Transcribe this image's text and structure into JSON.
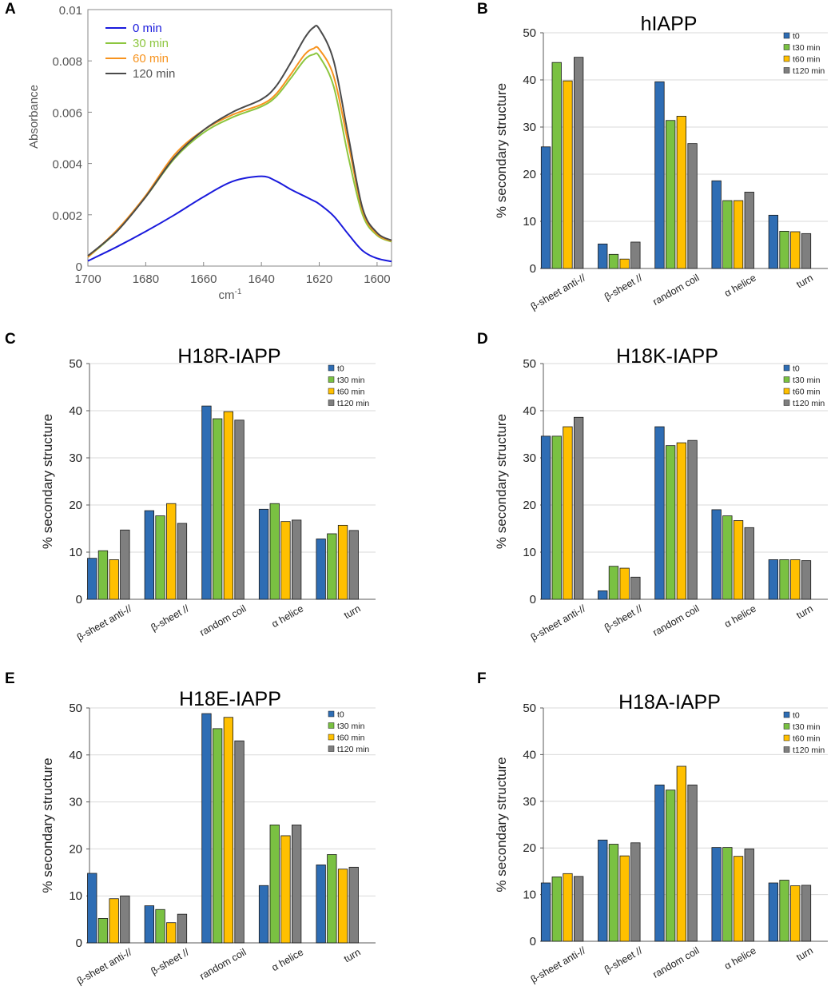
{
  "chart_data": [
    {
      "panel": "A",
      "type": "line",
      "title": "",
      "xlabel": "cm",
      "xlabel_sup": "-1",
      "ylabel": "Absorbance",
      "xlim": [
        1700,
        1595
      ],
      "ylim": [
        0,
        0.01
      ],
      "xticks": [
        "1700",
        "1680",
        "1660",
        "1640",
        "1620",
        "1600"
      ],
      "xtick_values": [
        1700,
        1680,
        1660,
        1640,
        1620,
        1600
      ],
      "yticks": [
        "0",
        "0.002",
        "0.004",
        "0.006",
        "0.008",
        "0.01"
      ],
      "ytick_values": [
        0,
        0.002,
        0.004,
        0.006,
        0.008,
        0.01
      ],
      "x": [
        1700,
        1690,
        1680,
        1670,
        1660,
        1650,
        1640,
        1635,
        1630,
        1625,
        1622,
        1620,
        1615,
        1610,
        1605,
        1600,
        1595
      ],
      "series": [
        {
          "name": "0 min",
          "color": "#1a1adc",
          "values": [
            0.0002,
            0.00075,
            0.00135,
            0.002,
            0.0027,
            0.0033,
            0.0035,
            0.00332,
            0.003,
            0.00272,
            0.00255,
            0.00242,
            0.00195,
            0.00125,
            0.0006,
            0.0003,
            0.00018
          ]
        },
        {
          "name": "30 min",
          "color": "#8dc63f",
          "values": [
            0.00035,
            0.00135,
            0.0027,
            0.0042,
            0.0052,
            0.0058,
            0.00622,
            0.0066,
            0.0073,
            0.00805,
            0.00825,
            0.00818,
            0.007,
            0.0043,
            0.002,
            0.0012,
            0.00095
          ]
        },
        {
          "name": "60 min",
          "color": "#f7931e",
          "values": [
            0.00035,
            0.0014,
            0.00275,
            0.00435,
            0.0053,
            0.0059,
            0.0063,
            0.0067,
            0.00745,
            0.00825,
            0.00848,
            0.00845,
            0.0074,
            0.0048,
            0.00215,
            0.00125,
            0.00098
          ]
        },
        {
          "name": "120 min",
          "color": "#4a4a4a",
          "values": [
            0.0004,
            0.00135,
            0.0027,
            0.00425,
            0.0053,
            0.006,
            0.0065,
            0.007,
            0.0079,
            0.0089,
            0.0093,
            0.00925,
            0.008,
            0.0051,
            0.00225,
            0.0013,
            0.001
          ]
        }
      ]
    },
    {
      "panel": "B",
      "type": "bar",
      "title": "hIAPP",
      "ylabel": "% secondary structure",
      "ylim": [
        0,
        50
      ],
      "yticks": [
        "0",
        "10",
        "20",
        "30",
        "40",
        "50"
      ],
      "categories": [
        "β-sheet anti-//",
        "β-sheet //",
        "random coil",
        "α helice",
        "turn"
      ],
      "series": [
        {
          "name": "t0",
          "color": "#2e6db4",
          "values": [
            25.8,
            5.2,
            39.6,
            18.6,
            11.3
          ]
        },
        {
          "name": "t30 min",
          "color": "#7ac142",
          "values": [
            43.7,
            3.0,
            31.4,
            14.4,
            7.9
          ]
        },
        {
          "name": "t60 min",
          "color": "#ffc000",
          "values": [
            39.8,
            2.0,
            32.3,
            14.4,
            7.8
          ]
        },
        {
          "name": "t120 min",
          "color": "#7f7f7f",
          "values": [
            44.8,
            5.6,
            26.5,
            16.2,
            7.4
          ]
        }
      ]
    },
    {
      "panel": "C",
      "type": "bar",
      "title": "H18R-IAPP",
      "ylabel": "% secondary structure",
      "ylim": [
        0,
        50
      ],
      "yticks": [
        "0",
        "10",
        "20",
        "30",
        "40",
        "50"
      ],
      "categories": [
        "β-sheet anti-//",
        "β-sheet //",
        "random coil",
        "α helice",
        "turn"
      ],
      "series": [
        {
          "name": "t0",
          "color": "#2e6db4",
          "values": [
            8.7,
            18.8,
            41.0,
            19.1,
            12.8
          ]
        },
        {
          "name": "t30 min",
          "color": "#7ac142",
          "values": [
            10.3,
            17.7,
            38.3,
            20.3,
            13.9
          ]
        },
        {
          "name": "t60 min",
          "color": "#ffc000",
          "values": [
            8.4,
            20.3,
            39.8,
            16.5,
            15.7
          ]
        },
        {
          "name": "t120 min",
          "color": "#7f7f7f",
          "values": [
            14.7,
            16.1,
            38.0,
            16.8,
            14.6
          ]
        }
      ]
    },
    {
      "panel": "D",
      "type": "bar",
      "title": "H18K-IAPP",
      "ylabel": "% secondary structure",
      "ylim": [
        0,
        50
      ],
      "yticks": [
        "0",
        "10",
        "20",
        "30",
        "40",
        "50"
      ],
      "categories": [
        "β-sheet anti-//",
        "β-sheet //",
        "random coil",
        "α helice",
        "turn"
      ],
      "series": [
        {
          "name": "t0",
          "color": "#2e6db4",
          "values": [
            34.6,
            1.8,
            36.6,
            19.0,
            8.4
          ]
        },
        {
          "name": "t30 min",
          "color": "#7ac142",
          "values": [
            34.6,
            7.0,
            32.6,
            17.7,
            8.4
          ]
        },
        {
          "name": "t60 min",
          "color": "#ffc000",
          "values": [
            36.6,
            6.6,
            33.2,
            16.7,
            8.4
          ]
        },
        {
          "name": "t120 min",
          "color": "#7f7f7f",
          "values": [
            38.6,
            4.7,
            33.7,
            15.2,
            8.2
          ]
        }
      ]
    },
    {
      "panel": "E",
      "type": "bar",
      "title": "H18E-IAPP",
      "ylabel": "% secondary structure",
      "ylim": [
        0,
        50
      ],
      "yticks": [
        "0",
        "10",
        "20",
        "30",
        "40",
        "50"
      ],
      "categories": [
        "β-sheet anti-//",
        "β-sheet //",
        "random coil",
        "α helice",
        "turn"
      ],
      "series": [
        {
          "name": "t0",
          "color": "#2e6db4",
          "values": [
            14.8,
            7.9,
            48.8,
            12.2,
            16.6
          ]
        },
        {
          "name": "t30 min",
          "color": "#7ac142",
          "values": [
            5.2,
            7.1,
            45.6,
            25.1,
            18.8
          ]
        },
        {
          "name": "t60 min",
          "color": "#ffc000",
          "values": [
            9.4,
            4.3,
            48.0,
            22.8,
            15.7
          ]
        },
        {
          "name": "t120 min",
          "color": "#7f7f7f",
          "values": [
            10.0,
            6.1,
            43.0,
            25.1,
            16.1
          ]
        }
      ]
    },
    {
      "panel": "F",
      "type": "bar",
      "title": "H18A-IAPP",
      "ylabel": "% secondary structure",
      "ylim": [
        0,
        50
      ],
      "yticks": [
        "0",
        "10",
        "20",
        "30",
        "40",
        "50"
      ],
      "categories": [
        "β-sheet anti-//",
        "β-sheet //",
        "random coil",
        "α helice",
        "turn"
      ],
      "series": [
        {
          "name": "t0",
          "color": "#2e6db4",
          "values": [
            12.5,
            21.7,
            33.5,
            20.1,
            12.5
          ]
        },
        {
          "name": "t30 min",
          "color": "#7ac142",
          "values": [
            13.8,
            20.8,
            32.4,
            20.1,
            13.1
          ]
        },
        {
          "name": "t60 min",
          "color": "#ffc000",
          "values": [
            14.5,
            18.3,
            37.5,
            18.2,
            11.9
          ]
        },
        {
          "name": "t120 min",
          "color": "#7f7f7f",
          "values": [
            13.9,
            21.1,
            33.5,
            19.8,
            12.0
          ]
        }
      ]
    }
  ]
}
